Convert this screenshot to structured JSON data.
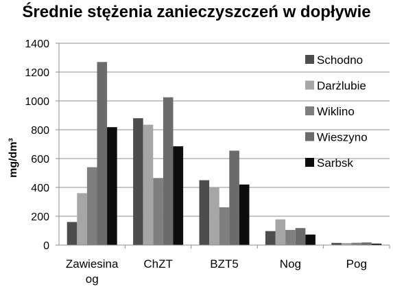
{
  "chart_data": {
    "type": "bar",
    "title": "Średnie stężenia zanieczyszczeń w dopływie",
    "xlabel": "",
    "ylabel": "mg/dm³",
    "ylim": [
      0,
      1400
    ],
    "yticks": [
      0,
      200,
      400,
      600,
      800,
      1000,
      1200,
      1400
    ],
    "grid": true,
    "legend_position": "right",
    "categories": [
      "Zawiesina og",
      "ChZT",
      "BZT5",
      "Nog",
      "Pog"
    ],
    "category_lines": [
      [
        "Zawiesina",
        "og"
      ],
      [
        "ChZT"
      ],
      [
        "BZT5"
      ],
      [
        "Nog"
      ],
      [
        "Pog"
      ]
    ],
    "series": [
      {
        "name": "Schodno",
        "color": "#4d4d4d",
        "values": [
          160,
          880,
          450,
          97,
          15
        ]
      },
      {
        "name": "Darżlubie",
        "color": "#a6a6a6",
        "values": [
          360,
          835,
          400,
          178,
          14
        ]
      },
      {
        "name": "Wiklino",
        "color": "#7f7f7f",
        "values": [
          540,
          465,
          262,
          105,
          16
        ]
      },
      {
        "name": "Wieszyno",
        "color": "#6b6b6b",
        "values": [
          1270,
          1025,
          655,
          118,
          18
        ]
      },
      {
        "name": "Sarbsk",
        "color": "#0d0d0d",
        "values": [
          818,
          685,
          420,
          73,
          10
        ]
      }
    ]
  }
}
